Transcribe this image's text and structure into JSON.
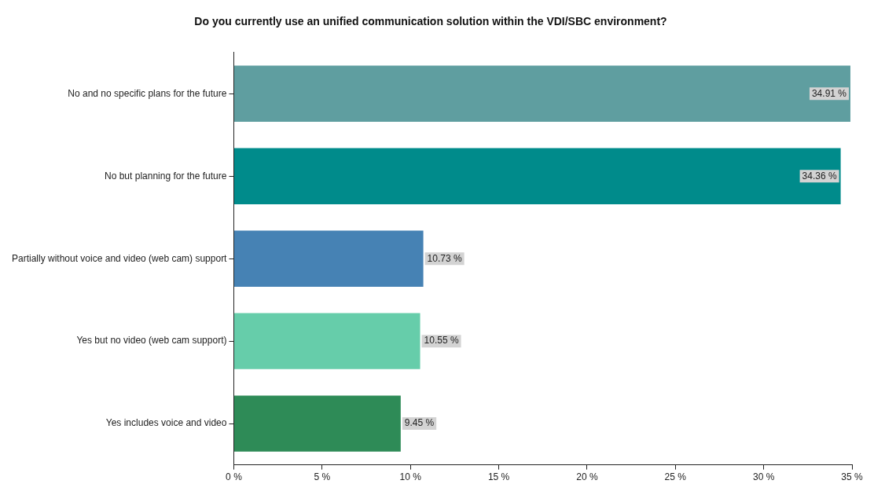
{
  "chart_data": {
    "type": "bar",
    "orientation": "horizontal",
    "title": "Do you currently use an unified communication solution within the VDI/SBC environment?",
    "categories": [
      "No and no specific plans for the future",
      "No but planning for the future",
      "Partially without voice and video (web cam) support",
      "Yes but no video (web cam support)",
      "Yes includes voice and video"
    ],
    "values": [
      34.91,
      34.36,
      10.73,
      10.55,
      9.45
    ],
    "colors": [
      "#5f9ea0",
      "#008b8b",
      "#4682b4",
      "#66cdaa",
      "#2e8b57"
    ],
    "value_labels": [
      "34.91 %",
      "34.36 %",
      "10.73 %",
      "10.55 %",
      "9.45 %"
    ],
    "xlim": [
      0,
      35
    ],
    "xticks": [
      {
        "value": 0,
        "label": "0 %"
      },
      {
        "value": 5,
        "label": "5 %"
      },
      {
        "value": 10,
        "label": "10 %"
      },
      {
        "value": 15,
        "label": "15 %"
      },
      {
        "value": 20,
        "label": "20 %"
      },
      {
        "value": 25,
        "label": "25 %"
      },
      {
        "value": 30,
        "label": "30 %"
      },
      {
        "value": 35,
        "label": "35 %"
      }
    ],
    "grid": false,
    "legend": false
  }
}
